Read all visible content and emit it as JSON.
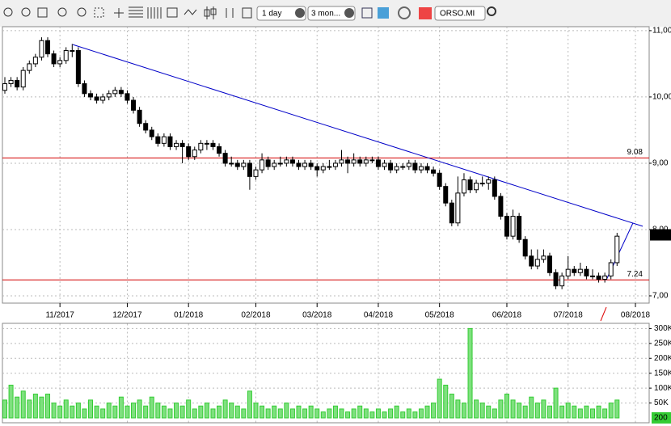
{
  "toolbar": {
    "interval": "1 day",
    "range": "3 mon...",
    "symbol": "ORSO.MI"
  },
  "chart_data": {
    "type": "candlestick",
    "categories": [
      null,
      null,
      null,
      null,
      null,
      null,
      null,
      null,
      null,
      "11/2017",
      null,
      null,
      null,
      null,
      null,
      null,
      null,
      null,
      null,
      null,
      "12/2017",
      null,
      null,
      null,
      null,
      null,
      null,
      null,
      null,
      null,
      "01/2018",
      null,
      null,
      null,
      null,
      null,
      null,
      null,
      null,
      null,
      null,
      "02/2018",
      null,
      null,
      null,
      null,
      null,
      null,
      null,
      null,
      null,
      "03/2018",
      null,
      null,
      null,
      null,
      null,
      null,
      null,
      null,
      null,
      "04/2018",
      null,
      null,
      null,
      null,
      null,
      null,
      null,
      null,
      null,
      "05/2018",
      null,
      null,
      null,
      null,
      null,
      null,
      null,
      null,
      null,
      null,
      "06/2018",
      null,
      null,
      null,
      null,
      null,
      null,
      null,
      null,
      null,
      "07/2018",
      null,
      null,
      null,
      null,
      null,
      null,
      null,
      null,
      null,
      null,
      "08/2018"
    ],
    "ohlc": [
      [
        10.1,
        10.3,
        10.05,
        10.2
      ],
      [
        10.2,
        10.3,
        10.15,
        10.25
      ],
      [
        10.25,
        10.3,
        10.1,
        10.15
      ],
      [
        10.15,
        10.45,
        10.1,
        10.4
      ],
      [
        10.4,
        10.55,
        10.35,
        10.5
      ],
      [
        10.5,
        10.65,
        10.45,
        10.6
      ],
      [
        10.6,
        10.9,
        10.55,
        10.85
      ],
      [
        10.85,
        10.9,
        10.6,
        10.65
      ],
      [
        10.65,
        10.7,
        10.45,
        10.5
      ],
      [
        10.5,
        10.6,
        10.45,
        10.55
      ],
      [
        10.55,
        10.75,
        10.5,
        10.7
      ],
      [
        10.7,
        10.8,
        10.6,
        10.7
      ],
      [
        10.7,
        10.75,
        10.15,
        10.2
      ],
      [
        10.2,
        10.25,
        10.0,
        10.05
      ],
      [
        10.05,
        10.1,
        9.95,
        10.0
      ],
      [
        10.0,
        10.05,
        9.9,
        9.95
      ],
      [
        9.95,
        10.05,
        9.9,
        10.0
      ],
      [
        10.0,
        10.1,
        9.95,
        10.05
      ],
      [
        10.05,
        10.15,
        10.0,
        10.1
      ],
      [
        10.1,
        10.15,
        10.0,
        10.05
      ],
      [
        10.05,
        10.1,
        9.9,
        9.95
      ],
      [
        9.95,
        10.0,
        9.75,
        9.8
      ],
      [
        9.8,
        9.85,
        9.55,
        9.6
      ],
      [
        9.6,
        9.65,
        9.45,
        9.5
      ],
      [
        9.5,
        9.55,
        9.35,
        9.4
      ],
      [
        9.4,
        9.45,
        9.25,
        9.3
      ],
      [
        9.3,
        9.45,
        9.25,
        9.4
      ],
      [
        9.4,
        9.45,
        9.2,
        9.25
      ],
      [
        9.25,
        9.35,
        9.2,
        9.3
      ],
      [
        9.3,
        9.35,
        9.0,
        9.25
      ],
      [
        9.25,
        9.3,
        9.05,
        9.1
      ],
      [
        9.1,
        9.25,
        9.05,
        9.2
      ],
      [
        9.2,
        9.35,
        9.15,
        9.3
      ],
      [
        9.3,
        9.35,
        9.2,
        9.3
      ],
      [
        9.3,
        9.35,
        9.2,
        9.25
      ],
      [
        9.25,
        9.3,
        9.1,
        9.15
      ],
      [
        9.15,
        9.2,
        8.95,
        9.0
      ],
      [
        9.0,
        9.1,
        8.95,
        9.0
      ],
      [
        9.0,
        9.05,
        8.9,
        8.95
      ],
      [
        8.95,
        9.05,
        8.9,
        9.0
      ],
      [
        9.0,
        9.05,
        8.6,
        8.8
      ],
      [
        8.8,
        8.95,
        8.75,
        8.9
      ],
      [
        8.9,
        9.15,
        8.85,
        9.05
      ],
      [
        9.05,
        9.1,
        8.9,
        8.95
      ],
      [
        8.95,
        9.05,
        8.9,
        9.0
      ],
      [
        9.0,
        9.1,
        8.95,
        9.0
      ],
      [
        9.0,
        9.1,
        8.95,
        9.05
      ],
      [
        9.05,
        9.1,
        8.95,
        9.0
      ],
      [
        9.0,
        9.05,
        8.9,
        8.95
      ],
      [
        8.95,
        9.05,
        8.9,
        9.0
      ],
      [
        9.0,
        9.05,
        8.9,
        8.95
      ],
      [
        8.95,
        9.0,
        8.8,
        8.9
      ],
      [
        8.9,
        9.0,
        8.85,
        8.95
      ],
      [
        8.95,
        9.05,
        8.9,
        8.95
      ],
      [
        8.95,
        9.05,
        8.9,
        9.0
      ],
      [
        9.0,
        9.2,
        8.95,
        9.05
      ],
      [
        9.05,
        9.1,
        8.85,
        9.0
      ],
      [
        9.0,
        9.15,
        8.95,
        9.05
      ],
      [
        9.05,
        9.1,
        8.95,
        9.0
      ],
      [
        9.0,
        9.1,
        8.95,
        9.05
      ],
      [
        9.05,
        9.1,
        9.0,
        9.05
      ],
      [
        9.05,
        9.1,
        8.9,
        8.95
      ],
      [
        8.95,
        9.05,
        8.9,
        9.0
      ],
      [
        9.0,
        9.05,
        8.85,
        8.9
      ],
      [
        8.9,
        9.0,
        8.85,
        8.95
      ],
      [
        8.95,
        9.0,
        8.9,
        8.95
      ],
      [
        8.95,
        9.05,
        8.9,
        9.0
      ],
      [
        9.0,
        9.05,
        8.85,
        8.9
      ],
      [
        8.9,
        9.0,
        8.85,
        8.95
      ],
      [
        8.95,
        9.0,
        8.85,
        8.9
      ],
      [
        8.9,
        8.95,
        8.8,
        8.85
      ],
      [
        8.85,
        8.9,
        8.6,
        8.65
      ],
      [
        8.65,
        8.7,
        8.35,
        8.4
      ],
      [
        8.4,
        8.45,
        8.05,
        8.1
      ],
      [
        8.1,
        8.8,
        8.05,
        8.55
      ],
      [
        8.55,
        8.85,
        8.5,
        8.75
      ],
      [
        8.75,
        8.8,
        8.55,
        8.6
      ],
      [
        8.6,
        8.75,
        8.55,
        8.7
      ],
      [
        8.7,
        8.8,
        8.65,
        8.7
      ],
      [
        8.7,
        8.8,
        8.6,
        8.75
      ],
      [
        8.75,
        8.8,
        8.45,
        8.5
      ],
      [
        8.5,
        8.55,
        8.15,
        8.2
      ],
      [
        8.2,
        8.25,
        7.85,
        7.9
      ],
      [
        7.9,
        8.3,
        7.85,
        8.2
      ],
      [
        8.2,
        8.25,
        7.8,
        7.85
      ],
      [
        7.85,
        7.9,
        7.55,
        7.6
      ],
      [
        7.6,
        7.7,
        7.4,
        7.45
      ],
      [
        7.45,
        7.7,
        7.4,
        7.55
      ],
      [
        7.55,
        7.7,
        7.5,
        7.6
      ],
      [
        7.6,
        7.65,
        7.3,
        7.35
      ],
      [
        7.35,
        7.4,
        7.1,
        7.15
      ],
      [
        7.15,
        7.35,
        7.1,
        7.3
      ],
      [
        7.3,
        7.6,
        7.25,
        7.4
      ],
      [
        7.4,
        7.45,
        7.3,
        7.35
      ],
      [
        7.35,
        7.5,
        7.3,
        7.4
      ],
      [
        7.4,
        7.45,
        7.25,
        7.3
      ],
      [
        7.3,
        7.4,
        7.25,
        7.3
      ],
      [
        7.3,
        7.35,
        7.2,
        7.25
      ],
      [
        7.25,
        7.35,
        7.2,
        7.3
      ],
      [
        7.3,
        7.55,
        7.25,
        7.5
      ],
      [
        7.5,
        7.95,
        7.45,
        7.9
      ],
      null,
      null,
      null
    ],
    "ylim": [
      6.89,
      11.06
    ],
    "yticks": [
      {
        "value": 11,
        "label": "11,00"
      },
      {
        "value": 10,
        "label": "10,00"
      },
      {
        "value": 9,
        "label": "9,00"
      },
      {
        "value": 8,
        "label": "8,00"
      },
      {
        "value": 7,
        "label": "7,00"
      }
    ],
    "grid": true,
    "last_price": 7.92,
    "hlines": [
      {
        "value": 9.08,
        "color": "#d40000"
      },
      {
        "value": 7.24,
        "color": "#d40000"
      }
    ],
    "trendlines": [
      {
        "from": 10.79,
        "to": 8.05,
        "color": "#0000c8"
      },
      {
        "from": 7.24,
        "to": 8.1,
        "color": "#0000c8"
      }
    ],
    "volume": {
      "color": "#7ee07e",
      "values": [
        60000,
        110000,
        70000,
        90000,
        60000,
        80000,
        70000,
        80000,
        50000,
        40000,
        60000,
        40000,
        50000,
        30000,
        60000,
        40000,
        30000,
        50000,
        40000,
        70000,
        40000,
        50000,
        60000,
        40000,
        70000,
        50000,
        40000,
        30000,
        50000,
        40000,
        60000,
        30000,
        40000,
        50000,
        30000,
        40000,
        60000,
        50000,
        40000,
        30000,
        90000,
        50000,
        40000,
        30000,
        40000,
        30000,
        50000,
        30000,
        40000,
        30000,
        40000,
        30000,
        20000,
        30000,
        40000,
        30000,
        20000,
        30000,
        40000,
        30000,
        20000,
        30000,
        20000,
        30000,
        40000,
        20000,
        30000,
        20000,
        30000,
        40000,
        50000,
        130000,
        110000,
        80000,
        60000,
        50000,
        300000,
        60000,
        50000,
        40000,
        30000,
        60000,
        80000,
        60000,
        50000,
        40000,
        70000,
        50000,
        60000,
        40000,
        100000,
        40000,
        50000,
        40000,
        30000,
        40000,
        30000,
        40000,
        30000,
        50000,
        60000,
        null,
        null,
        null
      ],
      "ylim": [
        0,
        316000
      ],
      "yticks": [
        {
          "value": 50000,
          "label": "50K"
        },
        {
          "value": 100000,
          "label": "100K"
        },
        {
          "value": 150000,
          "label": "150K"
        },
        {
          "value": 200000,
          "label": "200K"
        },
        {
          "value": 250000,
          "label": "250K"
        },
        {
          "value": 300000,
          "label": "300K"
        }
      ],
      "last_volume": 200
    }
  }
}
